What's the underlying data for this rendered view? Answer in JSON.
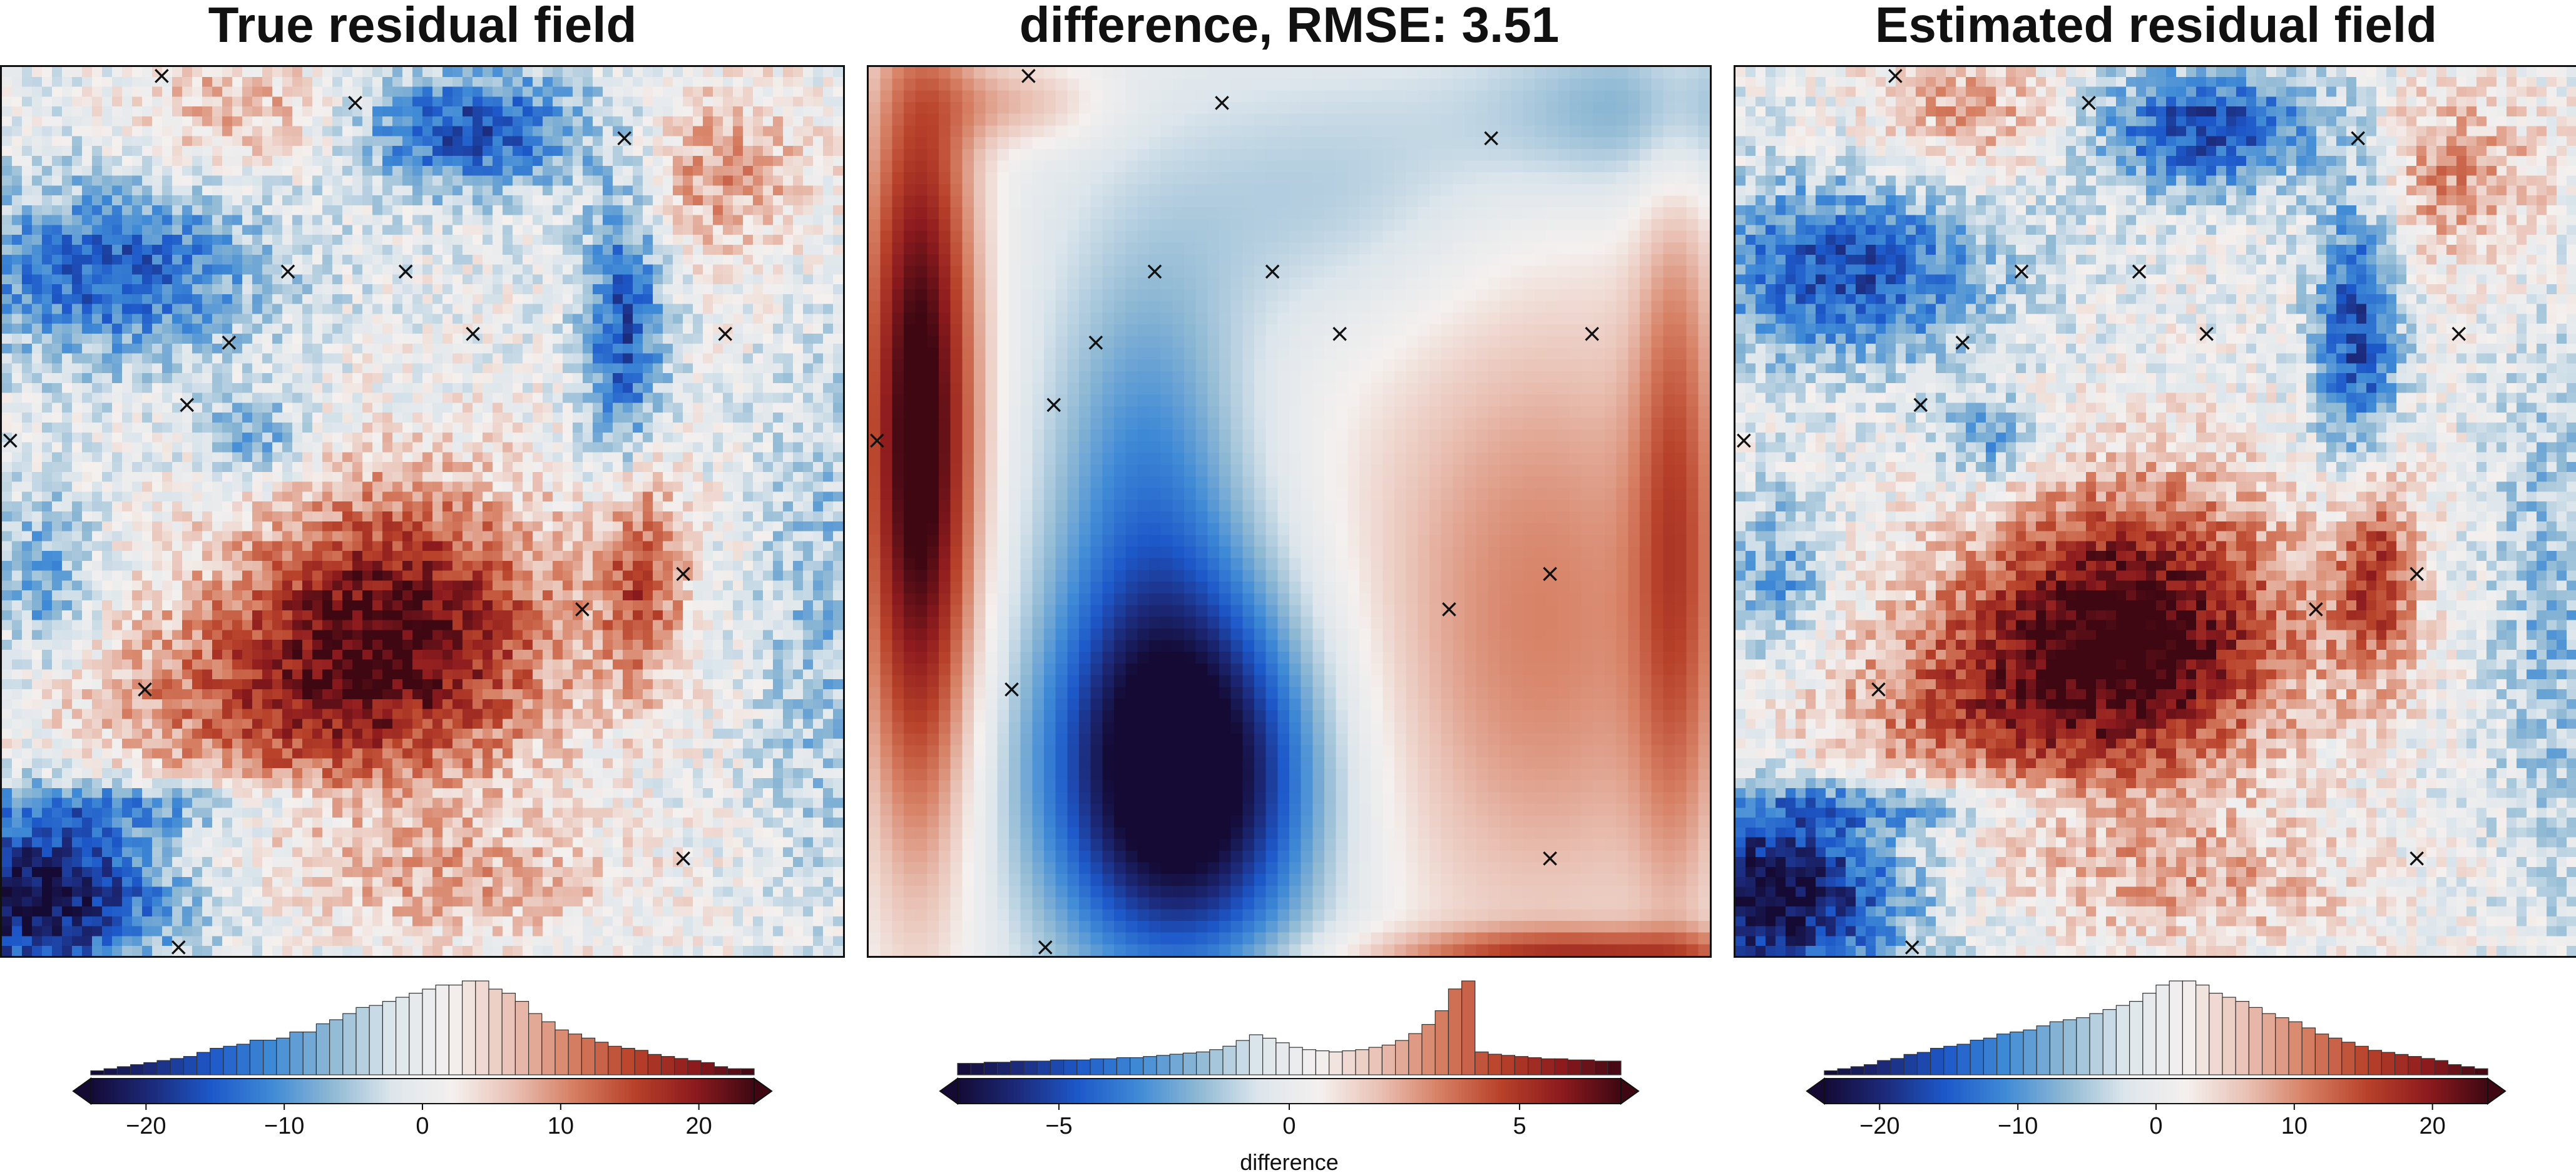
{
  "figure": {
    "colormap": [
      "#140a34",
      "#1c2a7a",
      "#1d58c9",
      "#3f8ad6",
      "#8fb9d4",
      "#dde6ec",
      "#f4f0ee",
      "#e9c1b4",
      "#d67f63",
      "#b8422a",
      "#8e1b1e",
      "#3e0712"
    ],
    "marker_symbol": "×"
  },
  "panels": [
    {
      "title": "True residual field",
      "colorbar_label": ""
    },
    {
      "title": "difference, RMSE: 3.51",
      "colorbar_label": "difference"
    },
    {
      "title": "Estimated residual field",
      "colorbar_label": ""
    }
  ],
  "chart_data": [
    {
      "type": "heatmap",
      "title": "True residual field",
      "grid": false,
      "colormap": "diverging blue-white-red",
      "clim": [
        -24,
        24
      ],
      "colorbar": {
        "ticks": [
          -20,
          -10,
          0,
          10,
          20
        ],
        "tick_labels": [
          "−20",
          "−10",
          "0",
          "10",
          "20"
        ],
        "extend": "both",
        "histogram": [
          2,
          3,
          4,
          5,
          6,
          7,
          8,
          9,
          11,
          13,
          14,
          15,
          17,
          17,
          18,
          21,
          21,
          25,
          27,
          30,
          33,
          34,
          36,
          38,
          40,
          42,
          44,
          44,
          46,
          46,
          42,
          40,
          36,
          30,
          26,
          22,
          20,
          18,
          16,
          14,
          13,
          12,
          10,
          9,
          8,
          7,
          6,
          4,
          3,
          3
        ]
      },
      "markers": [
        [
          0.19,
          0.01
        ],
        [
          0.42,
          0.04
        ],
        [
          0.74,
          0.08
        ],
        [
          0.34,
          0.23
        ],
        [
          0.48,
          0.23
        ],
        [
          0.27,
          0.31
        ],
        [
          0.56,
          0.3
        ],
        [
          0.86,
          0.3
        ],
        [
          0.22,
          0.38
        ],
        [
          0.01,
          0.42
        ],
        [
          0.81,
          0.57
        ],
        [
          0.69,
          0.61
        ],
        [
          0.17,
          0.7
        ],
        [
          0.81,
          0.89
        ],
        [
          0.21,
          0.99
        ]
      ]
    },
    {
      "type": "heatmap",
      "title": "difference, RMSE: 3.51",
      "grid": false,
      "colormap": "diverging blue-white-red",
      "clim": [
        -7.2,
        7.2
      ],
      "colorbar": {
        "label": "difference",
        "ticks": [
          -5,
          0,
          5
        ],
        "tick_labels": [
          "−5",
          "0",
          "5"
        ],
        "extend": "both",
        "histogram": [
          10,
          10,
          11,
          11,
          12,
          12,
          12,
          13,
          13,
          13,
          14,
          14,
          15,
          15,
          16,
          17,
          18,
          19,
          20,
          22,
          25,
          30,
          35,
          32,
          28,
          24,
          22,
          21,
          20,
          21,
          22,
          24,
          26,
          30,
          36,
          44,
          56,
          75,
          82,
          20,
          18,
          17,
          16,
          15,
          14,
          14,
          13,
          13,
          12,
          12
        ]
      },
      "markers": [
        [
          0.19,
          0.01
        ],
        [
          0.42,
          0.04
        ],
        [
          0.74,
          0.08
        ],
        [
          0.34,
          0.23
        ],
        [
          0.48,
          0.23
        ],
        [
          0.27,
          0.31
        ],
        [
          0.56,
          0.3
        ],
        [
          0.86,
          0.3
        ],
        [
          0.22,
          0.38
        ],
        [
          0.01,
          0.42
        ],
        [
          0.81,
          0.57
        ],
        [
          0.69,
          0.61
        ],
        [
          0.17,
          0.7
        ],
        [
          0.81,
          0.89
        ],
        [
          0.21,
          0.99
        ]
      ]
    },
    {
      "type": "heatmap",
      "title": "Estimated residual field",
      "grid": false,
      "colormap": "diverging blue-white-red",
      "clim": [
        -24,
        24
      ],
      "colorbar": {
        "ticks": [
          -20,
          -10,
          0,
          10,
          20
        ],
        "tick_labels": [
          "−20",
          "−10",
          "0",
          "10",
          "20"
        ],
        "extend": "both",
        "histogram": [
          2,
          3,
          4,
          5,
          7,
          8,
          10,
          11,
          13,
          14,
          15,
          17,
          18,
          20,
          21,
          22,
          24,
          26,
          27,
          28,
          30,
          32,
          34,
          36,
          40,
          44,
          46,
          46,
          44,
          40,
          38,
          36,
          33,
          30,
          28,
          26,
          23,
          20,
          18,
          16,
          14,
          12,
          11,
          10,
          9,
          8,
          7,
          5,
          4,
          3
        ]
      },
      "markers": [
        [
          0.19,
          0.01
        ],
        [
          0.42,
          0.04
        ],
        [
          0.74,
          0.08
        ],
        [
          0.34,
          0.23
        ],
        [
          0.48,
          0.23
        ],
        [
          0.27,
          0.31
        ],
        [
          0.56,
          0.3
        ],
        [
          0.86,
          0.3
        ],
        [
          0.22,
          0.38
        ],
        [
          0.01,
          0.42
        ],
        [
          0.81,
          0.57
        ],
        [
          0.69,
          0.61
        ],
        [
          0.17,
          0.7
        ],
        [
          0.81,
          0.89
        ],
        [
          0.21,
          0.99
        ]
      ]
    }
  ]
}
